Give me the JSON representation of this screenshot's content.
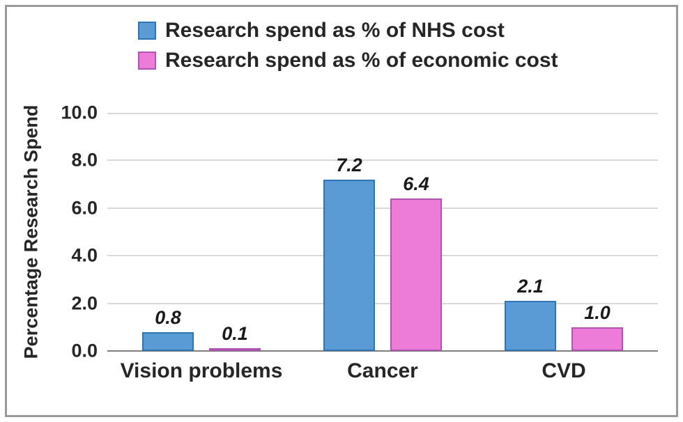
{
  "chart_data": {
    "type": "bar",
    "categories": [
      "Vision problems",
      "Cancer",
      "CVD"
    ],
    "series": [
      {
        "name": "Research spend as % of NHS cost",
        "color": "#5B9BD5",
        "border_color": "#2E75B6",
        "values": [
          0.8,
          7.2,
          2.1
        ]
      },
      {
        "name": "Research spend as % of economic cost",
        "color": "#EC7CD8",
        "border_color": "#B052B0",
        "values": [
          0.1,
          6.4,
          1.0
        ]
      }
    ],
    "title": "",
    "xlabel": "",
    "ylabel": "Percentage Research Spend",
    "ylim": [
      0,
      10
    ],
    "yticks": [
      "10.0",
      "8.0",
      "6.0",
      "4.0",
      "2.0",
      "0.0"
    ],
    "data_labels": {
      "series_0": [
        "0.8",
        "7.2",
        "2.1"
      ],
      "series_1": [
        "0.1",
        "6.4",
        "1.0"
      ]
    },
    "grid": "horizontal",
    "legend_position": "top-left",
    "colors": {
      "gridline": "#d9d9d9",
      "axis_line": "#7f7f7f",
      "text": "#262626",
      "frame_border": "#9a9a9a",
      "background": "#ffffff"
    }
  }
}
